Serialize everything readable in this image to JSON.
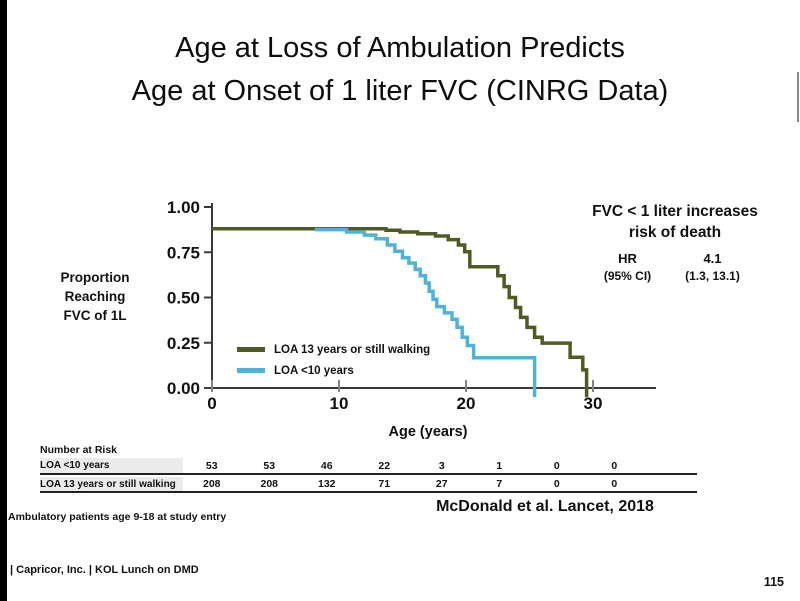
{
  "slide": {
    "title": "Age at Loss of Ambulation Predicts\nAge at Onset of 1 liter FVC (CINRG Data)",
    "footer": "| Capricor, Inc. | KOL Lunch on DMD",
    "page_number": "115"
  },
  "chart_data": {
    "type": "line",
    "subtype": "kaplan-meier-step",
    "title": "",
    "xlabel": "Age (years)",
    "ylabel": "Proportion\nReaching\nFVC of 1L",
    "xlim": [
      0,
      35
    ],
    "ylim": [
      0,
      1.0
    ],
    "x_ticks": [
      0,
      10,
      20,
      30
    ],
    "y_tick_labels": [
      "1.00",
      "0.75",
      "0.50",
      "0.25",
      "0.00"
    ],
    "grid": false,
    "legend_position": "inside lower-left",
    "axis_color": "#3a3a3a",
    "series": [
      {
        "name": "LOA 13 years or still walking",
        "color": "#4e5c24",
        "step_points": [
          [
            0,
            0.88
          ],
          [
            13.7,
            0.872
          ],
          [
            14.8,
            0.862
          ],
          [
            16.2,
            0.852
          ],
          [
            17.6,
            0.84
          ],
          [
            18.6,
            0.82
          ],
          [
            19.4,
            0.79
          ],
          [
            19.9,
            0.753
          ],
          [
            20.3,
            0.67
          ],
          [
            22.5,
            0.62
          ],
          [
            23.0,
            0.56
          ],
          [
            23.4,
            0.5
          ],
          [
            23.9,
            0.445
          ],
          [
            24.3,
            0.39
          ],
          [
            24.8,
            0.335
          ],
          [
            25.4,
            0.28
          ],
          [
            26.0,
            0.248
          ],
          [
            28.2,
            0.17
          ],
          [
            29.2,
            0.1
          ],
          [
            29.5,
            -0.05
          ]
        ]
      },
      {
        "name": "LOA <10 years",
        "color": "#50b2d6",
        "step_points": [
          [
            8.1,
            0.875
          ],
          [
            10.6,
            0.862
          ],
          [
            12.0,
            0.845
          ],
          [
            12.9,
            0.825
          ],
          [
            13.8,
            0.79
          ],
          [
            14.4,
            0.755
          ],
          [
            15.0,
            0.72
          ],
          [
            15.5,
            0.69
          ],
          [
            16.0,
            0.655
          ],
          [
            16.4,
            0.62
          ],
          [
            16.8,
            0.58
          ],
          [
            17.1,
            0.535
          ],
          [
            17.4,
            0.49
          ],
          [
            17.7,
            0.45
          ],
          [
            18.3,
            0.415
          ],
          [
            18.9,
            0.38
          ],
          [
            19.3,
            0.335
          ],
          [
            19.7,
            0.28
          ],
          [
            20.1,
            0.235
          ],
          [
            20.6,
            0.167
          ],
          [
            25.4,
            -0.05
          ]
        ]
      }
    ]
  },
  "annotation": {
    "heading": "FVC < 1 liter increases\nrisk of death",
    "hr_label": "HR",
    "hr_value": "4.1",
    "ci_label": "(95% CI)",
    "ci_value": "(1.3, 13.1)"
  },
  "risk_table": {
    "title": "Number at Risk",
    "rows": [
      {
        "label": "LOA <10 years",
        "values": [
          "53",
          "53",
          "46",
          "22",
          "3",
          "1",
          "0",
          "0"
        ]
      },
      {
        "label": "LOA 13 years or still walking",
        "values": [
          "208",
          "208",
          "132",
          "71",
          "27",
          "7",
          "0",
          "0"
        ]
      }
    ]
  },
  "notes": {
    "left": "Ambulatory patients age 9-18 at study entry",
    "citation": "McDonald et al. Lancet, 2018"
  }
}
